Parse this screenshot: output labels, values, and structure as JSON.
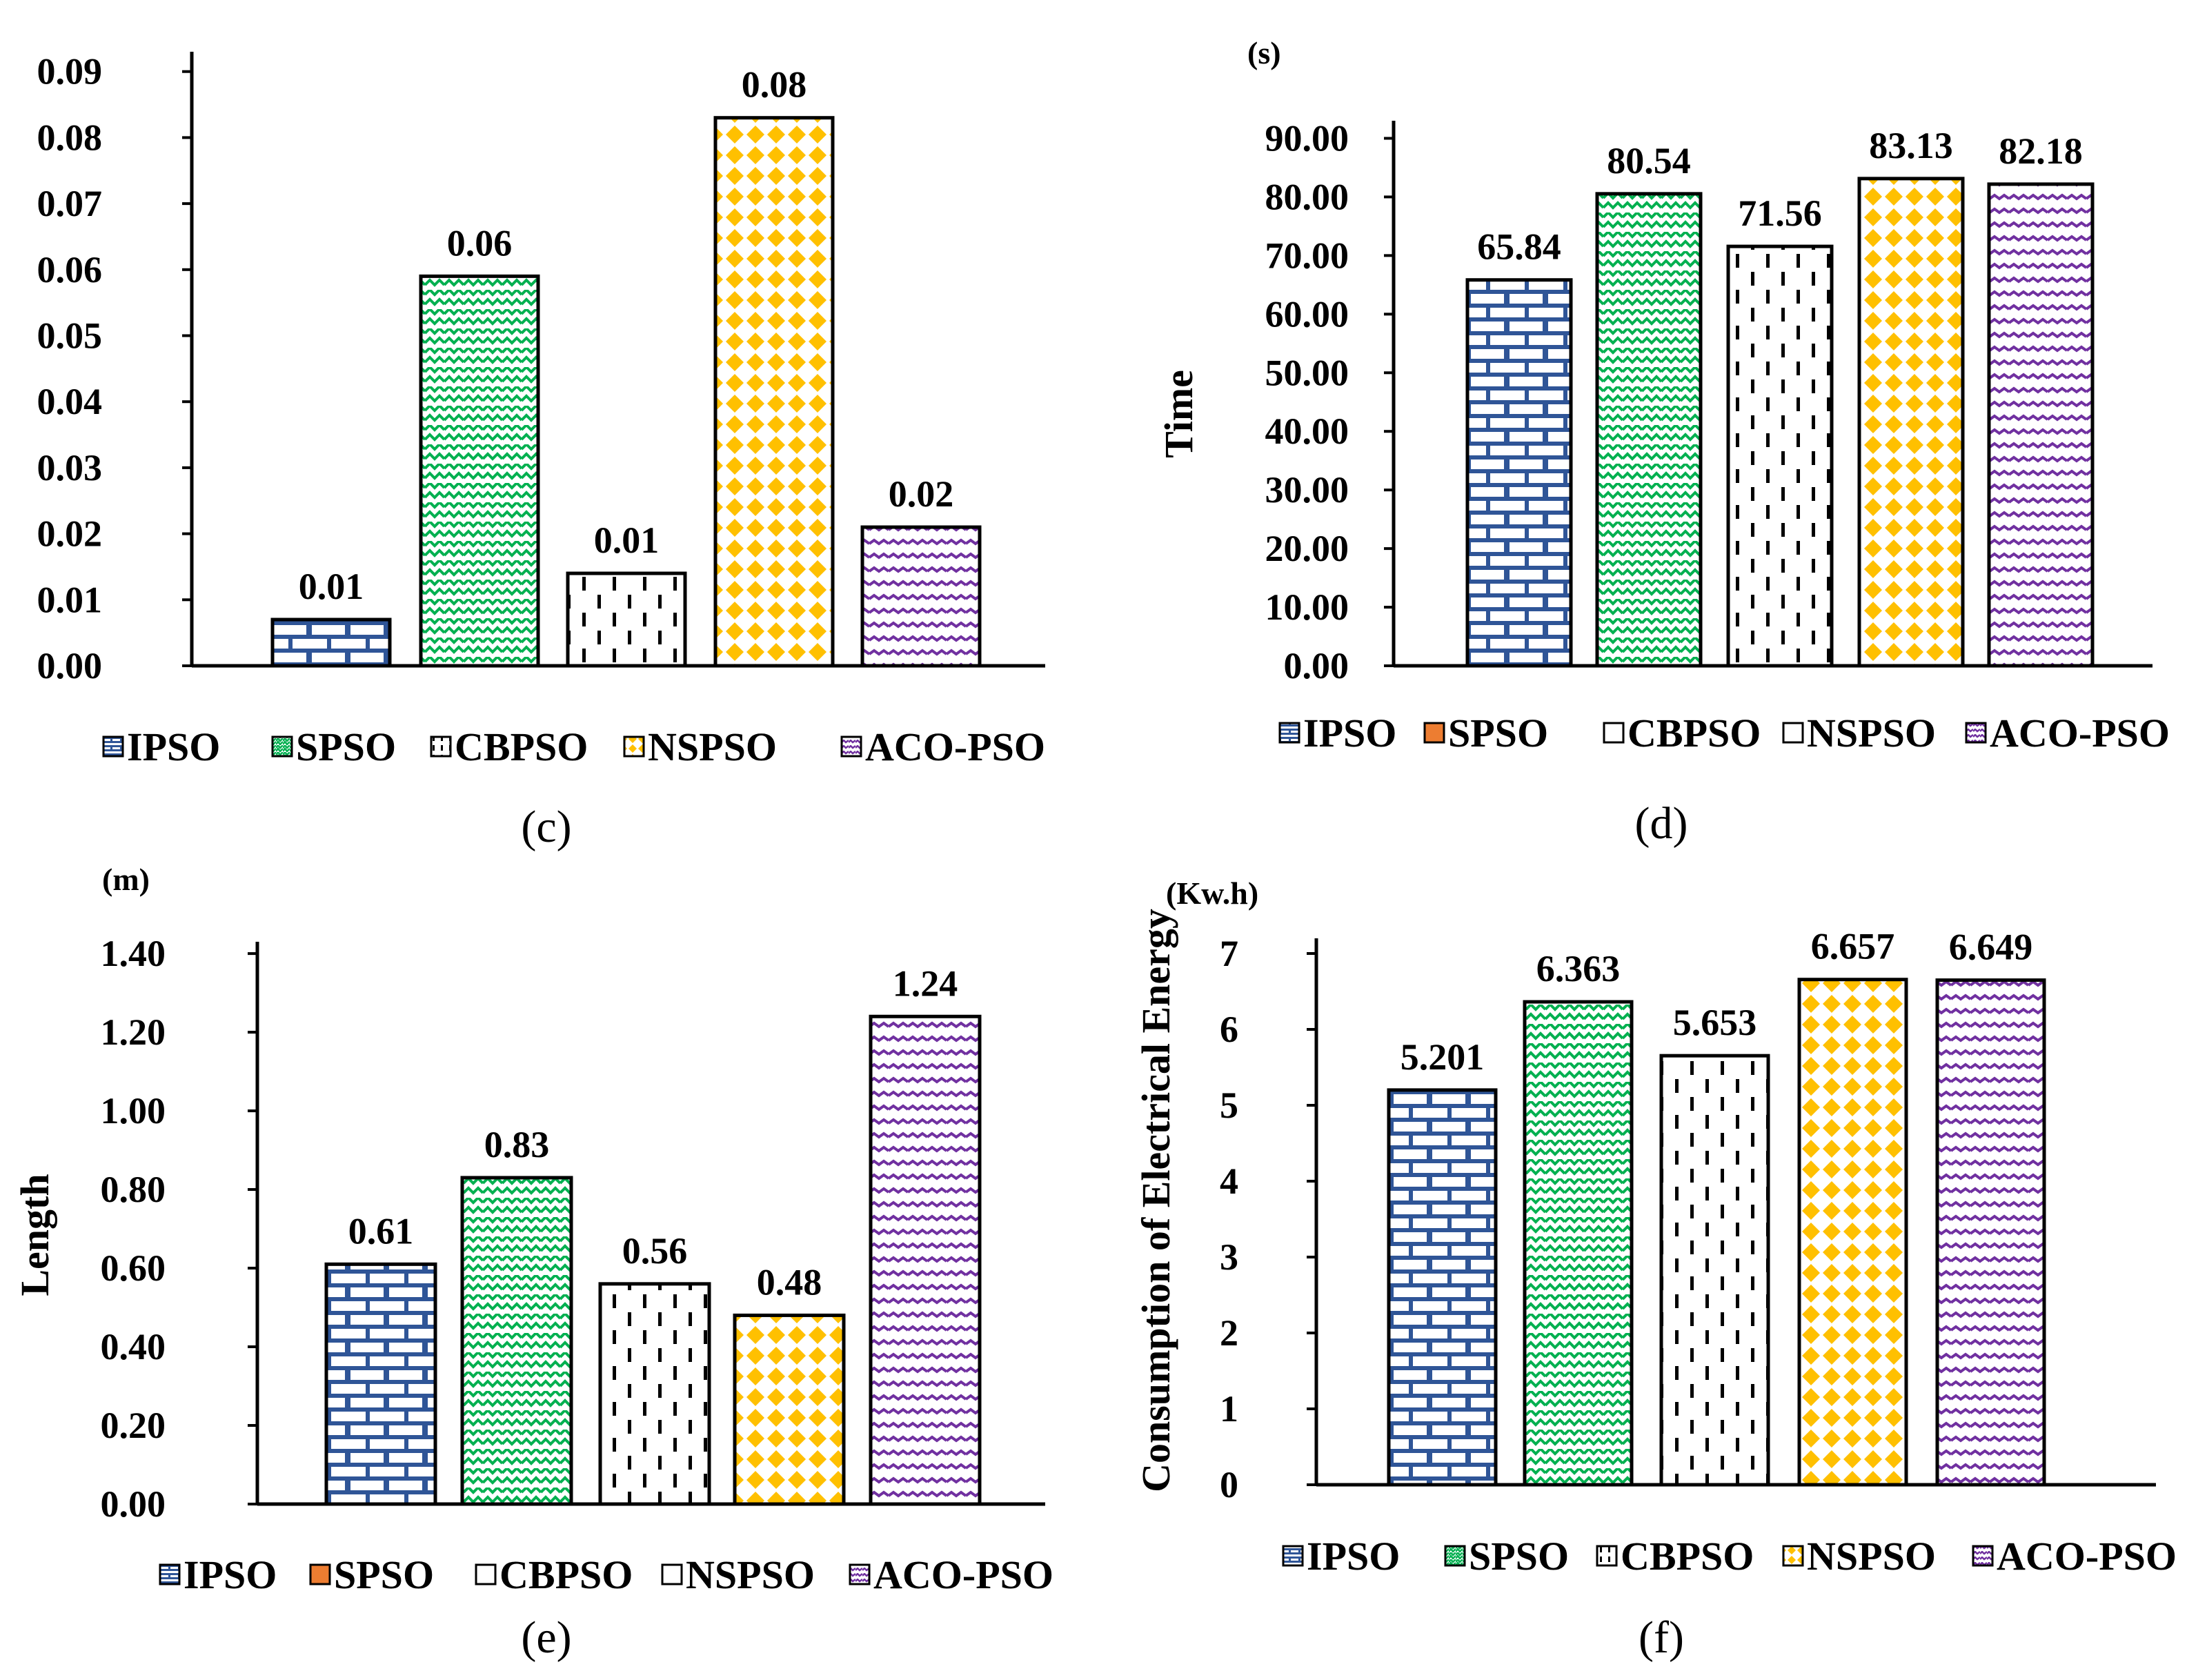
{
  "colors": {
    "IPSO": "#2f5597",
    "SPSO": "#00b050",
    "CBPSO": "#000000",
    "NSPSO": "#ffc000",
    "ACO-PSO": "#7030a0",
    "SPSO_legend_d": "#ed7d31",
    "SPSO_legend_e": "#ed7d31",
    "axis": "#000000"
  },
  "chart_data": [
    {
      "type": "bar",
      "caption": "(c)",
      "unit_label": "",
      "ylabel": "",
      "categories": [
        "IPSO",
        "SPSO",
        "CBPSO",
        "NSPSO",
        "ACO-PSO"
      ],
      "values": [
        0.007,
        0.059,
        0.014,
        0.083,
        0.021
      ],
      "data_labels": [
        "0.01",
        "0.06",
        "0.01",
        "0.08",
        "0.02"
      ],
      "ylim": [
        0,
        0.093
      ],
      "yticks": [
        0,
        0.01,
        0.02,
        0.03,
        0.04,
        0.05,
        0.06,
        0.07,
        0.08,
        0.09
      ],
      "ytick_labels": [
        "0.00",
        "0.01",
        "0.02",
        "0.03",
        "0.04",
        "0.05",
        "0.06",
        "0.07",
        "0.08",
        "0.09"
      ],
      "legend": [
        "IPSO",
        "SPSO",
        "CBPSO",
        "NSPSO",
        "ACO-PSO"
      ],
      "legend_position": "bottom"
    },
    {
      "type": "bar",
      "caption": "(d)",
      "unit_label": "(s)",
      "ylabel": "Time",
      "categories": [
        "IPSO",
        "SPSO",
        "CBPSO",
        "NSPSO",
        "ACO-PSO"
      ],
      "values": [
        65.84,
        80.54,
        71.56,
        83.13,
        82.18
      ],
      "data_labels": [
        "65.84",
        "80.54",
        "71.56",
        "83.13",
        "82.18"
      ],
      "ylim": [
        0,
        93
      ],
      "yticks": [
        0,
        10,
        20,
        30,
        40,
        50,
        60,
        70,
        80,
        90
      ],
      "ytick_labels": [
        "0.00",
        "10.00",
        "20.00",
        "30.00",
        "40.00",
        "50.00",
        "60.00",
        "70.00",
        "80.00",
        "90.00"
      ],
      "legend": [
        "IPSO",
        "SPSO",
        "CBPSO",
        "NSPSO",
        "ACO-PSO"
      ],
      "legend_position": "bottom"
    },
    {
      "type": "bar",
      "caption": "(e)",
      "unit_label": "(m)",
      "ylabel": "Length",
      "categories": [
        "IPSO",
        "SPSO",
        "CBPSO",
        "NSPSO",
        "ACO-PSO"
      ],
      "values": [
        0.61,
        0.83,
        0.56,
        0.48,
        1.24
      ],
      "data_labels": [
        "0.61",
        "0.83",
        "0.56",
        "0.48",
        "1.24"
      ],
      "ylim": [
        0,
        1.43
      ],
      "yticks": [
        0,
        0.2,
        0.4,
        0.6,
        0.8,
        1.0,
        1.2,
        1.4
      ],
      "ytick_labels": [
        "0.00",
        "0.20",
        "0.40",
        "0.60",
        "0.80",
        "1.00",
        "1.20",
        "1.40"
      ],
      "legend": [
        "IPSO",
        "SPSO",
        "CBPSO",
        "NSPSO",
        "ACO-PSO"
      ],
      "legend_position": "bottom"
    },
    {
      "type": "bar",
      "caption": "(f)",
      "unit_label": "(Kw.h)",
      "ylabel": "Consumption of Electrical Energy",
      "categories": [
        "IPSO",
        "SPSO",
        "CBPSO",
        "NSPSO",
        "ACO-PSO"
      ],
      "values": [
        5.201,
        6.363,
        5.653,
        6.657,
        6.649
      ],
      "data_labels": [
        "5.201",
        "6.363",
        "5.653",
        "6.657",
        "6.649"
      ],
      "ylim": [
        0,
        7.2
      ],
      "yticks": [
        0,
        1,
        2,
        3,
        4,
        5,
        6,
        7
      ],
      "ytick_labels": [
        "0",
        "1",
        "2",
        "3",
        "4",
        "5",
        "6",
        "7"
      ],
      "legend": [
        "IPSO",
        "SPSO",
        "CBPSO",
        "NSPSO",
        "ACO-PSO"
      ],
      "legend_position": "bottom"
    }
  ]
}
